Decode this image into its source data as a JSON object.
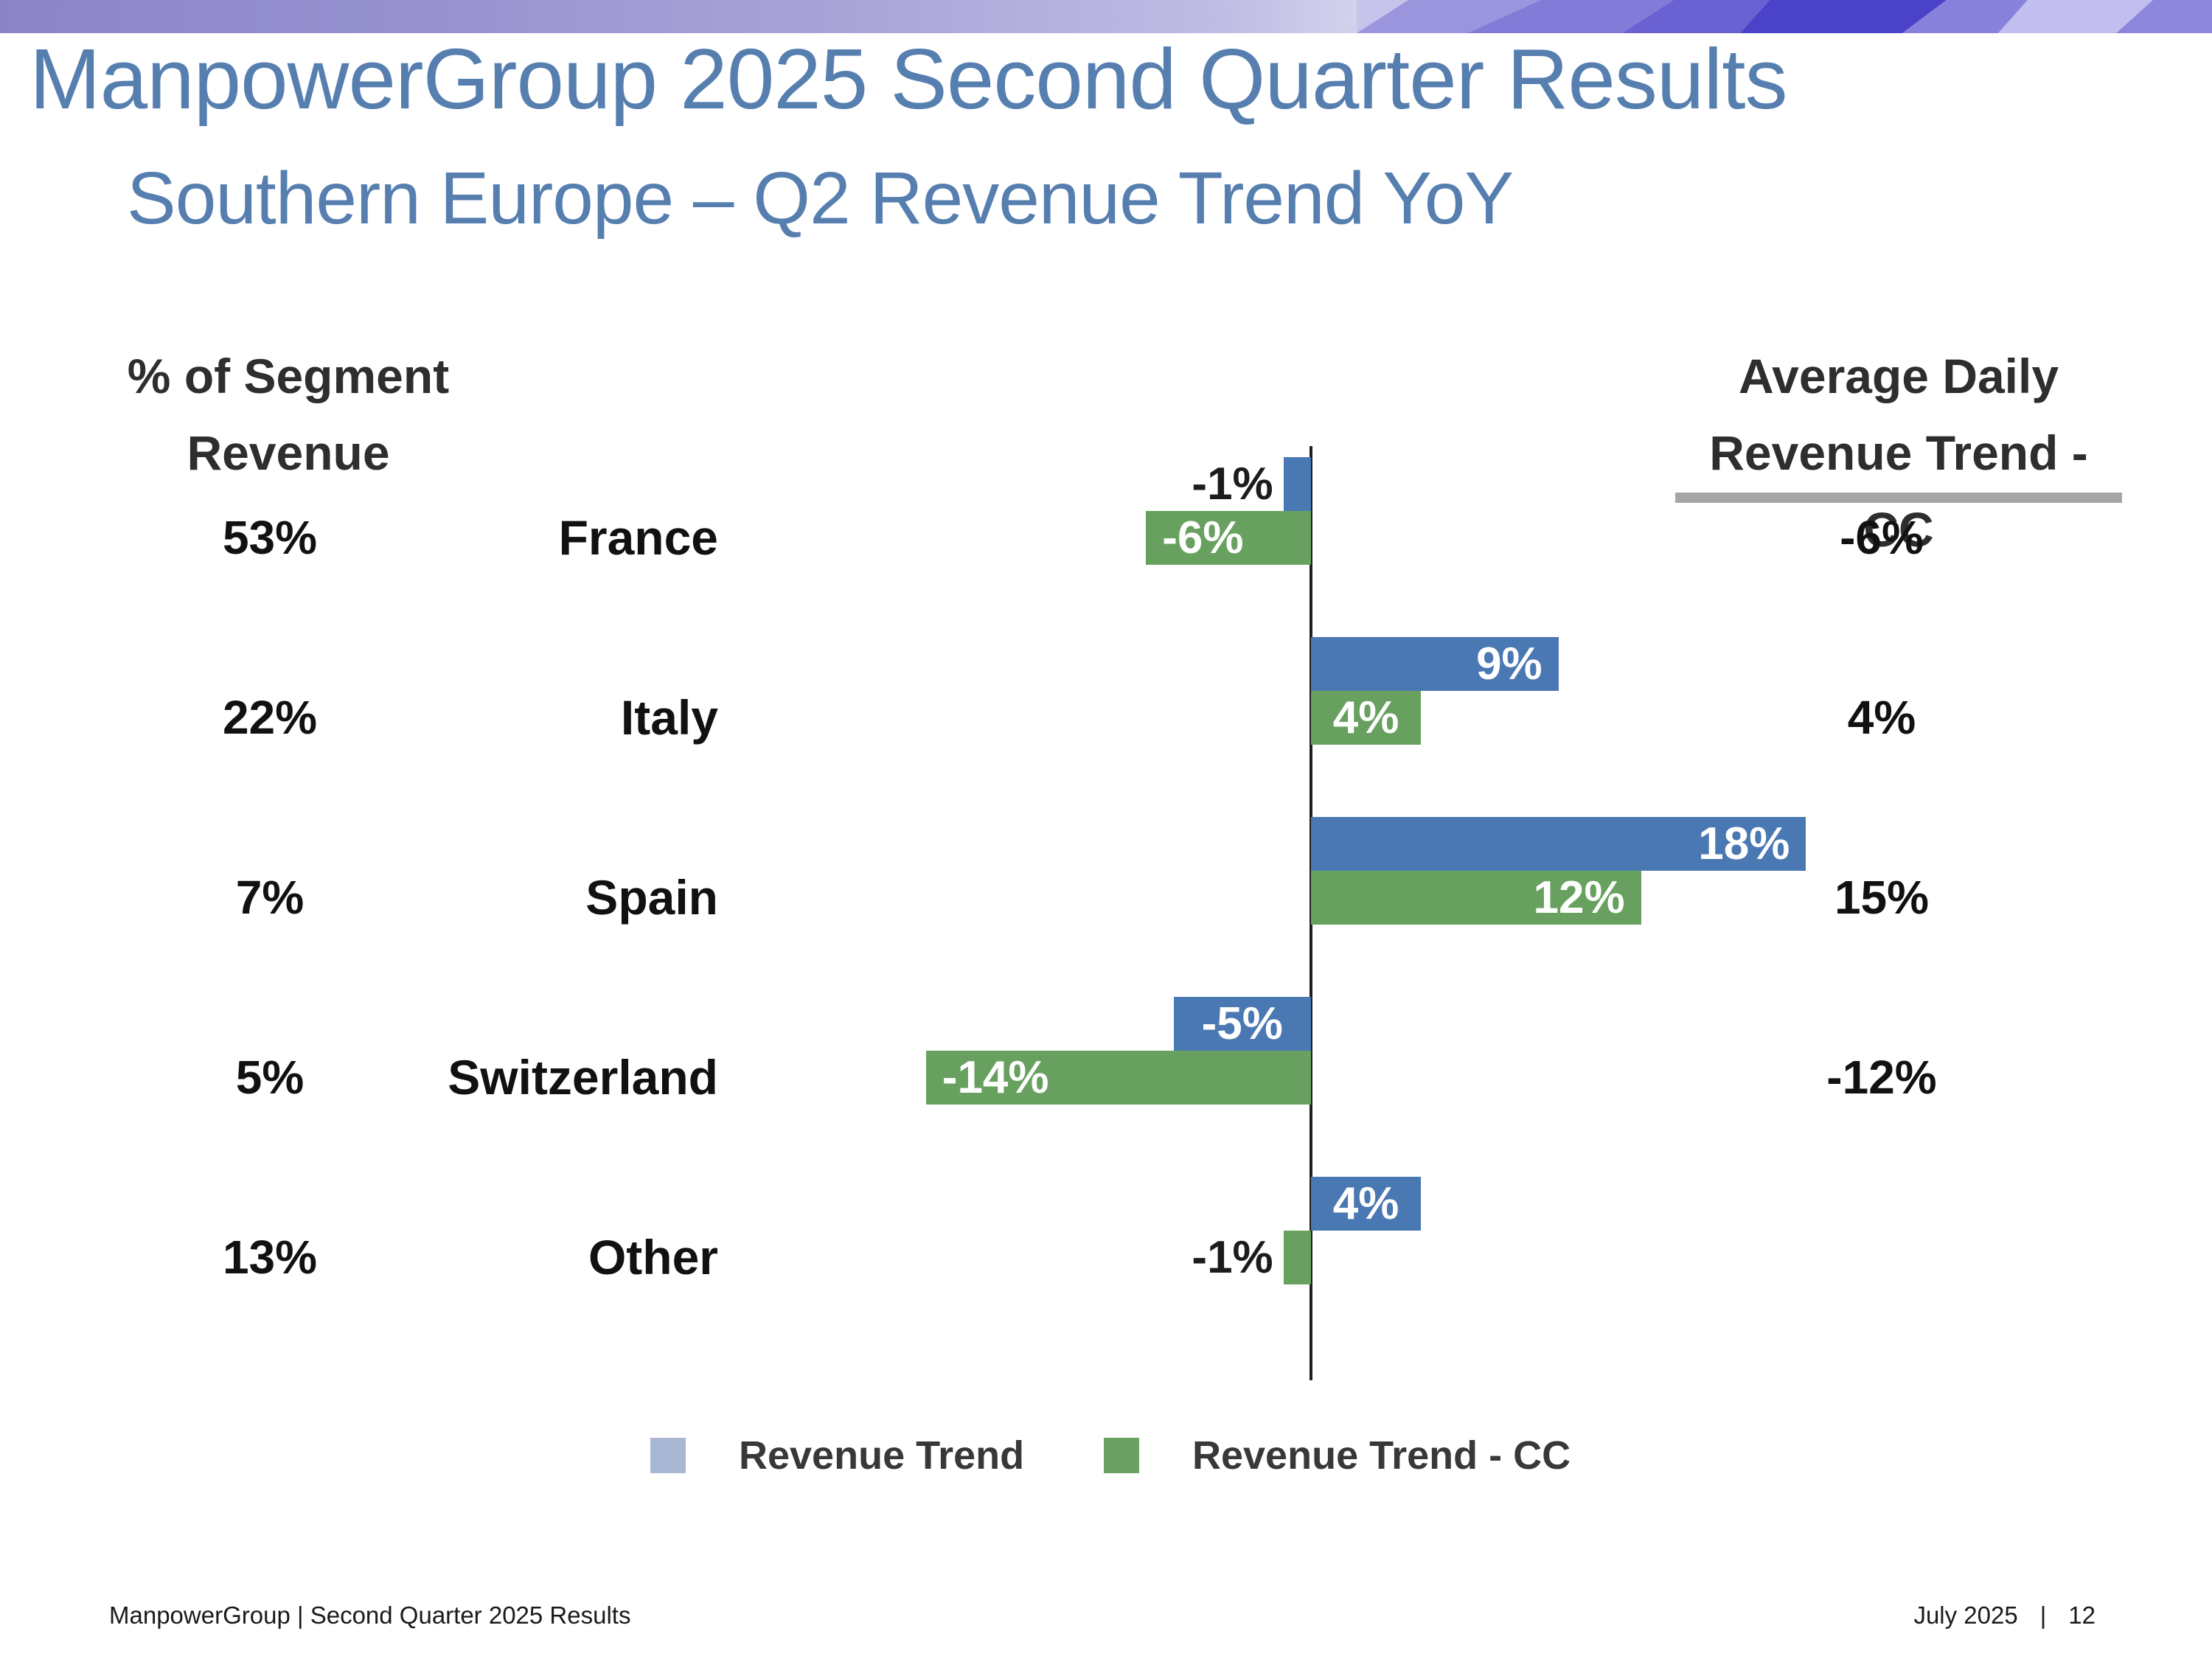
{
  "slide": {
    "title": "ManpowerGroup 2025 Second Quarter Results",
    "subtitle": "Southern Europe – Q2 Revenue Trend YoY",
    "left_header_line1": "% of Segment",
    "left_header_line2": "Revenue",
    "right_header_line1": "Average Daily",
    "right_header_line2": "Revenue Trend - CC"
  },
  "colors": {
    "bar_blue": "#4a78b2",
    "bar_green": "#68a15f",
    "legend_blue": "#a9b7d5",
    "legend_green": "#6ba263",
    "title_blue": "#567fb0",
    "axis": "#1f1f1f",
    "header_underline": "#a6a6a6",
    "banner_purple": "#8b85c8"
  },
  "legend": {
    "items": [
      {
        "label": "Revenue Trend",
        "color": "#a9b7d5"
      },
      {
        "label": "Revenue Trend - CC",
        "color": "#6ba263"
      }
    ]
  },
  "footer": {
    "left": "ManpowerGroup  |  Second Quarter 2025 Results",
    "right_date": "July 2025",
    "right_separator": "|",
    "right_page": "12"
  },
  "chart_data": {
    "type": "bar",
    "orientation": "horizontal",
    "title": "Southern Europe – Q2 Revenue Trend YoY",
    "categories": [
      "France",
      "Italy",
      "Spain",
      "Switzerland",
      "Other"
    ],
    "series": [
      {
        "name": "Revenue Trend",
        "values": [
          -1,
          9,
          18,
          -5,
          4
        ]
      },
      {
        "name": "Revenue Trend - CC",
        "values": [
          -6,
          4,
          12,
          -14,
          -1
        ]
      }
    ],
    "segment_share": [
      "53%",
      "22%",
      "7%",
      "5%",
      "13%"
    ],
    "average_daily_revenue_trend_cc": [
      "-6%",
      "4%",
      "15%",
      "-12%",
      ""
    ],
    "legend_position": "bottom",
    "grid": false,
    "rows": [
      {
        "segment_share": "53%",
        "country": "France",
        "revenue_trend": -1,
        "revenue_trend_label": "-1%",
        "revenue_trend_label_pos": "outside",
        "revenue_trend_cc": -6,
        "cc_label": "-6%",
        "cc_label_pos": "inside-start",
        "avg_daily_cc": "-6%"
      },
      {
        "segment_share": "22%",
        "country": "Italy",
        "revenue_trend": 9,
        "revenue_trend_label": "9%",
        "revenue_trend_label_pos": "inside-end",
        "revenue_trend_cc": 4,
        "cc_label": "4%",
        "cc_label_pos": "inside-center",
        "avg_daily_cc": "4%"
      },
      {
        "segment_share": "7%",
        "country": "Spain",
        "revenue_trend": 18,
        "revenue_trend_label": "18%",
        "revenue_trend_label_pos": "inside-end",
        "revenue_trend_cc": 12,
        "cc_label": "12%",
        "cc_label_pos": "inside-end",
        "avg_daily_cc": "15%"
      },
      {
        "segment_share": "5%",
        "country": "Switzerland",
        "revenue_trend": -5,
        "revenue_trend_label": "-5%",
        "revenue_trend_label_pos": "inside-center",
        "revenue_trend_cc": -14,
        "cc_label": "-14%",
        "cc_label_pos": "inside-start",
        "avg_daily_cc": "-12%"
      },
      {
        "segment_share": "13%",
        "country": "Other",
        "revenue_trend": 4,
        "revenue_trend_label": "4%",
        "revenue_trend_label_pos": "inside-center",
        "revenue_trend_cc": -1,
        "cc_label": "-1%",
        "cc_label_pos": "outside",
        "avg_daily_cc": ""
      }
    ]
  }
}
